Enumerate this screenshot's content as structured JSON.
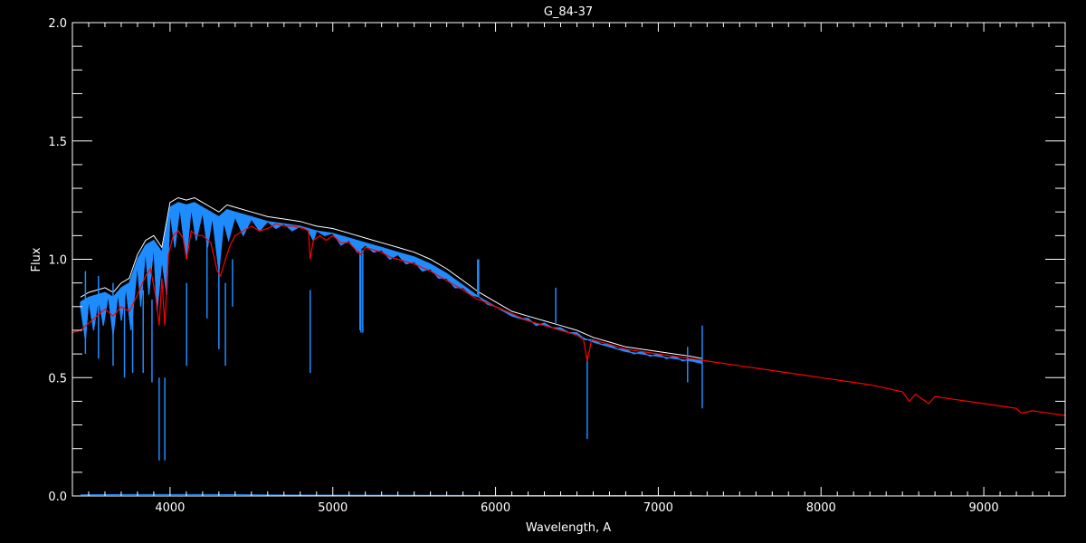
{
  "chart_data": {
    "type": "line",
    "title": "G_84-37",
    "xlabel": "Wavelength, A",
    "ylabel": "Flux",
    "xlim": [
      3400,
      9500
    ],
    "ylim": [
      0.0,
      2.0
    ],
    "x_major_ticks": [
      4000,
      5000,
      6000,
      7000,
      8000,
      9000
    ],
    "x_tick_labels": [
      "4000",
      "5000",
      "6000",
      "7000",
      "8000",
      "9000"
    ],
    "x_minor_step": 100,
    "y_major_ticks": [
      0.0,
      0.5,
      1.0,
      1.5,
      2.0
    ],
    "y_tick_labels": [
      "0.0",
      "0.5",
      "1.0",
      "1.5",
      "2.0"
    ],
    "y_minor_step": 0.1,
    "grid": false,
    "background": "#000000",
    "axis_color": "#ffffff",
    "series": [
      {
        "color": "#ffffff",
        "points": [
          [
            3450,
            0.84
          ],
          [
            3500,
            0.86
          ],
          [
            3550,
            0.87
          ],
          [
            3600,
            0.88
          ],
          [
            3650,
            0.86
          ],
          [
            3700,
            0.9
          ],
          [
            3750,
            0.92
          ],
          [
            3800,
            1.02
          ],
          [
            3850,
            1.08
          ],
          [
            3900,
            1.1
          ],
          [
            3950,
            1.05
          ],
          [
            4000,
            1.24
          ],
          [
            4050,
            1.26
          ],
          [
            4100,
            1.25
          ],
          [
            4150,
            1.26
          ],
          [
            4200,
            1.24
          ],
          [
            4250,
            1.22
          ],
          [
            4300,
            1.2
          ],
          [
            4350,
            1.23
          ],
          [
            4400,
            1.22
          ],
          [
            4500,
            1.2
          ],
          [
            4600,
            1.18
          ],
          [
            4700,
            1.17
          ],
          [
            4800,
            1.16
          ],
          [
            4850,
            1.15
          ],
          [
            4900,
            1.14
          ],
          [
            5000,
            1.13
          ],
          [
            5100,
            1.11
          ],
          [
            5200,
            1.09
          ],
          [
            5300,
            1.07
          ],
          [
            5400,
            1.05
          ],
          [
            5500,
            1.03
          ],
          [
            5600,
            1.0
          ],
          [
            5700,
            0.96
          ],
          [
            5800,
            0.91
          ],
          [
            5900,
            0.86
          ],
          [
            6000,
            0.82
          ],
          [
            6100,
            0.78
          ],
          [
            6200,
            0.76
          ],
          [
            6300,
            0.74
          ],
          [
            6400,
            0.72
          ],
          [
            6500,
            0.7
          ],
          [
            6600,
            0.67
          ],
          [
            6700,
            0.65
          ],
          [
            6800,
            0.63
          ],
          [
            6900,
            0.62
          ],
          [
            7000,
            0.61
          ],
          [
            7100,
            0.6
          ],
          [
            7200,
            0.59
          ],
          [
            7270,
            0.58
          ]
        ]
      },
      {
        "color": "#1e8cff",
        "points": [
          [
            3450,
            0.8
          ],
          [
            3480,
            0.66
          ],
          [
            3500,
            0.83
          ],
          [
            3530,
            0.7
          ],
          [
            3560,
            0.84
          ],
          [
            3590,
            0.72
          ],
          [
            3620,
            0.85
          ],
          [
            3650,
            0.68
          ],
          [
            3680,
            0.86
          ],
          [
            3700,
            0.74
          ],
          [
            3730,
            0.88
          ],
          [
            3760,
            0.7
          ],
          [
            3800,
            0.98
          ],
          [
            3820,
            0.8
          ],
          [
            3850,
            1.04
          ],
          [
            3870,
            0.85
          ],
          [
            3900,
            1.06
          ],
          [
            3920,
            0.78
          ],
          [
            3950,
            1.0
          ],
          [
            3980,
            0.85
          ],
          [
            4000,
            1.2
          ],
          [
            4030,
            1.05
          ],
          [
            4060,
            1.22
          ],
          [
            4100,
            1.0
          ],
          [
            4130,
            1.22
          ],
          [
            4160,
            1.08
          ],
          [
            4200,
            1.2
          ],
          [
            4230,
            1.05
          ],
          [
            4260,
            1.18
          ],
          [
            4300,
            0.95
          ],
          [
            4330,
            1.16
          ],
          [
            4360,
            1.08
          ],
          [
            4400,
            1.18
          ],
          [
            4450,
            1.1
          ],
          [
            4500,
            1.17
          ],
          [
            4550,
            1.12
          ],
          [
            4600,
            1.16
          ],
          [
            4650,
            1.13
          ],
          [
            4700,
            1.15
          ],
          [
            4750,
            1.12
          ],
          [
            4800,
            1.14
          ],
          [
            4850,
            1.12
          ],
          [
            4880,
            1.08
          ],
          [
            4900,
            1.12
          ],
          [
            4950,
            1.1
          ],
          [
            5000,
            1.11
          ],
          [
            5050,
            1.06
          ],
          [
            5100,
            1.08
          ],
          [
            5150,
            1.03
          ],
          [
            5200,
            1.06
          ],
          [
            5250,
            1.03
          ],
          [
            5300,
            1.04
          ],
          [
            5350,
            1.0
          ],
          [
            5400,
            1.02
          ],
          [
            5450,
            0.98
          ],
          [
            5500,
            0.99
          ],
          [
            5550,
            0.95
          ],
          [
            5600,
            0.96
          ],
          [
            5650,
            0.92
          ],
          [
            5700,
            0.92
          ],
          [
            5750,
            0.88
          ],
          [
            5800,
            0.88
          ],
          [
            5850,
            0.85
          ],
          [
            5900,
            0.84
          ],
          [
            5950,
            0.81
          ],
          [
            6000,
            0.8
          ],
          [
            6050,
            0.78
          ],
          [
            6100,
            0.77
          ],
          [
            6150,
            0.75
          ],
          [
            6200,
            0.75
          ],
          [
            6250,
            0.72
          ],
          [
            6300,
            0.73
          ],
          [
            6350,
            0.71
          ],
          [
            6400,
            0.71
          ],
          [
            6450,
            0.69
          ],
          [
            6500,
            0.69
          ],
          [
            6550,
            0.66
          ],
          [
            6600,
            0.66
          ],
          [
            6650,
            0.64
          ],
          [
            6700,
            0.64
          ],
          [
            6750,
            0.62
          ],
          [
            6800,
            0.62
          ],
          [
            6850,
            0.6
          ],
          [
            6900,
            0.61
          ],
          [
            6950,
            0.59
          ],
          [
            7000,
            0.6
          ],
          [
            7050,
            0.58
          ],
          [
            7100,
            0.59
          ],
          [
            7150,
            0.57
          ],
          [
            7200,
            0.58
          ],
          [
            7270,
            0.57
          ]
        ],
        "absorption_lines": [
          [
            3480,
            0.6
          ],
          [
            3560,
            0.58
          ],
          [
            3650,
            0.55
          ],
          [
            3720,
            0.5
          ],
          [
            3770,
            0.52
          ],
          [
            3835,
            0.52
          ],
          [
            3889,
            0.48
          ],
          [
            3933,
            0.15
          ],
          [
            3968,
            0.15
          ],
          [
            4102,
            0.55
          ],
          [
            4227,
            0.75
          ],
          [
            4300,
            0.62
          ],
          [
            4340,
            0.55
          ],
          [
            4384,
            0.8
          ],
          [
            4861,
            0.52
          ],
          [
            5167,
            0.7
          ],
          [
            5173,
            0.69
          ],
          [
            5184,
            0.69
          ],
          [
            5890,
            0.85
          ],
          [
            5896,
            0.84
          ],
          [
            6563,
            0.24
          ],
          [
            7270,
            0.37
          ]
        ],
        "emission_spikes": [
          [
            6370,
            0.88
          ],
          [
            7180,
            0.63
          ]
        ]
      },
      {
        "color": "#ff0000",
        "points": [
          [
            3400,
            0.69
          ],
          [
            3450,
            0.7
          ],
          [
            3500,
            0.73
          ],
          [
            3550,
            0.76
          ],
          [
            3600,
            0.79
          ],
          [
            3650,
            0.76
          ],
          [
            3700,
            0.8
          ],
          [
            3750,
            0.78
          ],
          [
            3800,
            0.85
          ],
          [
            3850,
            0.93
          ],
          [
            3880,
            0.96
          ],
          [
            3910,
            0.85
          ],
          [
            3933,
            0.72
          ],
          [
            3950,
            0.92
          ],
          [
            3968,
            0.72
          ],
          [
            3990,
            1.02
          ],
          [
            4020,
            1.1
          ],
          [
            4050,
            1.12
          ],
          [
            4080,
            1.09
          ],
          [
            4102,
            1.0
          ],
          [
            4130,
            1.12
          ],
          [
            4160,
            1.1
          ],
          [
            4200,
            1.1
          ],
          [
            4250,
            1.07
          ],
          [
            4290,
            0.95
          ],
          [
            4310,
            0.93
          ],
          [
            4340,
            1.0
          ],
          [
            4370,
            1.06
          ],
          [
            4400,
            1.1
          ],
          [
            4450,
            1.12
          ],
          [
            4500,
            1.14
          ],
          [
            4550,
            1.12
          ],
          [
            4600,
            1.13
          ],
          [
            4650,
            1.15
          ],
          [
            4700,
            1.14
          ],
          [
            4760,
            1.14
          ],
          [
            4820,
            1.13
          ],
          [
            4850,
            1.12
          ],
          [
            4861,
            1.0
          ],
          [
            4880,
            1.08
          ],
          [
            4920,
            1.1
          ],
          [
            4960,
            1.08
          ],
          [
            5000,
            1.1
          ],
          [
            5050,
            1.07
          ],
          [
            5100,
            1.07
          ],
          [
            5170,
            1.02
          ],
          [
            5200,
            1.05
          ],
          [
            5250,
            1.04
          ],
          [
            5300,
            1.03
          ],
          [
            5350,
            1.01
          ],
          [
            5400,
            1.0
          ],
          [
            5450,
            0.99
          ],
          [
            5500,
            0.98
          ],
          [
            5600,
            0.95
          ],
          [
            5700,
            0.91
          ],
          [
            5800,
            0.87
          ],
          [
            5890,
            0.83
          ],
          [
            5900,
            0.83
          ],
          [
            6000,
            0.8
          ],
          [
            6100,
            0.77
          ],
          [
            6200,
            0.74
          ],
          [
            6300,
            0.72
          ],
          [
            6400,
            0.7
          ],
          [
            6500,
            0.68
          ],
          [
            6540,
            0.66
          ],
          [
            6563,
            0.57
          ],
          [
            6590,
            0.66
          ],
          [
            6700,
            0.64
          ],
          [
            6800,
            0.62
          ],
          [
            6900,
            0.61
          ],
          [
            7000,
            0.6
          ],
          [
            7100,
            0.59
          ],
          [
            7200,
            0.58
          ],
          [
            7300,
            0.57
          ],
          [
            7500,
            0.55
          ],
          [
            7700,
            0.53
          ],
          [
            8000,
            0.5
          ],
          [
            8300,
            0.47
          ],
          [
            8500,
            0.44
          ],
          [
            8542,
            0.4
          ],
          [
            8580,
            0.43
          ],
          [
            8662,
            0.39
          ],
          [
            8700,
            0.42
          ],
          [
            8800,
            0.41
          ],
          [
            9000,
            0.39
          ],
          [
            9100,
            0.38
          ],
          [
            9200,
            0.37
          ],
          [
            9230,
            0.35
          ],
          [
            9300,
            0.36
          ],
          [
            9500,
            0.34
          ]
        ]
      },
      {
        "color": "#1e8cff",
        "points": [
          [
            3450,
            0.005
          ],
          [
            3700,
            0.006
          ],
          [
            4000,
            0.006
          ],
          [
            4300,
            0.006
          ],
          [
            4700,
            0.004
          ],
          [
            5500,
            0.003
          ],
          [
            6000,
            0.002
          ],
          [
            6500,
            0.002
          ],
          [
            7000,
            0.002
          ],
          [
            7270,
            0.001
          ]
        ]
      }
    ]
  }
}
